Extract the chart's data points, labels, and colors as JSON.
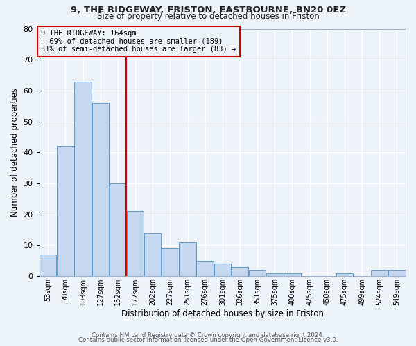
{
  "title1": "9, THE RIDGEWAY, FRISTON, EASTBOURNE, BN20 0EZ",
  "title2": "Size of property relative to detached houses in Friston",
  "xlabel": "Distribution of detached houses by size in Friston",
  "ylabel": "Number of detached properties",
  "categories": [
    "53sqm",
    "78sqm",
    "103sqm",
    "127sqm",
    "152sqm",
    "177sqm",
    "202sqm",
    "227sqm",
    "251sqm",
    "276sqm",
    "301sqm",
    "326sqm",
    "351sqm",
    "375sqm",
    "400sqm",
    "425sqm",
    "450sqm",
    "475sqm",
    "499sqm",
    "524sqm",
    "549sqm"
  ],
  "values": [
    7,
    42,
    63,
    56,
    30,
    21,
    14,
    9,
    11,
    5,
    4,
    3,
    2,
    1,
    1,
    0,
    0,
    1,
    0,
    2,
    2
  ],
  "bar_color": "#c5d8f0",
  "bar_edge_color": "#5b9bd5",
  "vline_x_index": 4.5,
  "vline_color": "#cc0000",
  "annotation_text1": "9 THE RIDGEWAY: 164sqm",
  "annotation_text2": "← 69% of detached houses are smaller (189)",
  "annotation_text3": "31% of semi-detached houses are larger (83) →",
  "box_edge_color": "#cc0000",
  "ylim": [
    0,
    80
  ],
  "yticks": [
    0,
    10,
    20,
    30,
    40,
    50,
    60,
    70,
    80
  ],
  "footer1": "Contains HM Land Registry data © Crown copyright and database right 2024.",
  "footer2": "Contains public sector information licensed under the Open Government Licence v3.0.",
  "bg_color": "#eef2f9",
  "grid_color": "#ffffff"
}
